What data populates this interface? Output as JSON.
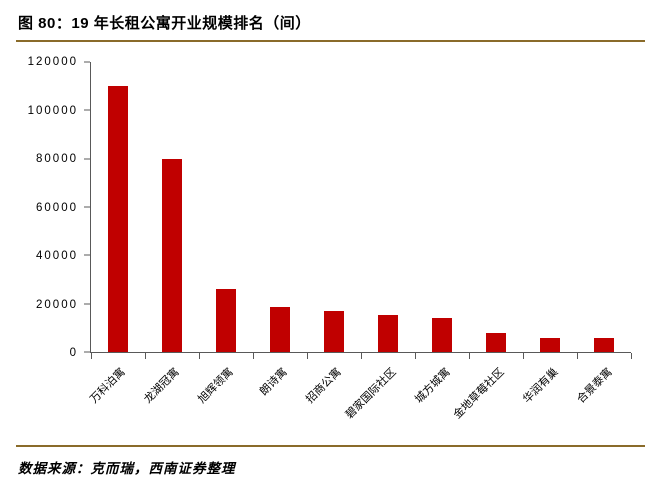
{
  "header": {
    "title": "图 80：19 年长租公寓开业规模排名（间）"
  },
  "footer": {
    "source": "数据来源：克而瑞，西南证券整理"
  },
  "colors": {
    "accent_line": "#8a6b2a",
    "bar": "#c00000",
    "axis": "#595959"
  },
  "chart_data": {
    "type": "bar",
    "title": "19 年长租公寓开业规模排名（间）",
    "categories": [
      "万科泊寓",
      "龙湖冠寓",
      "旭辉领寓",
      "朗诗寓",
      "招商公寓",
      "碧家国际社区",
      "城方城寓",
      "金地草莓社区",
      "华润有巢",
      "合景泰寓"
    ],
    "values": [
      110000,
      80000,
      26000,
      18500,
      17000,
      15500,
      14000,
      8000,
      6000,
      6000
    ],
    "xlabel": "",
    "ylabel": "",
    "ylim": [
      0,
      120000
    ],
    "ytick_interval": 20000,
    "grid": false,
    "legend": false,
    "bar_color": "#c00000"
  }
}
